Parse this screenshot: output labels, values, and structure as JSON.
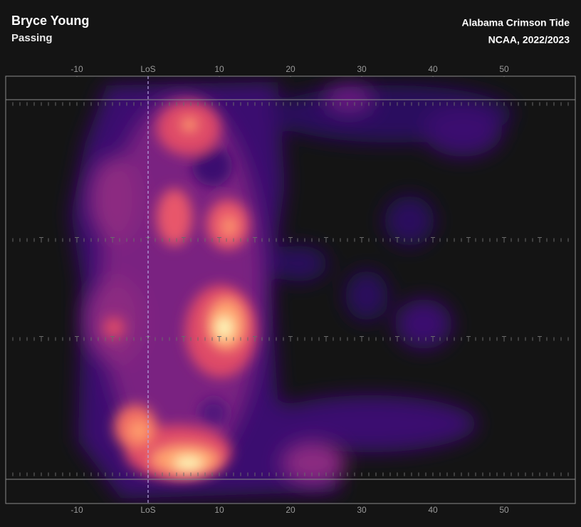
{
  "title": "Bryce Young",
  "subtitle": "Passing",
  "team": "Alabama Crimson Tide",
  "season": "NCAA, 2022/2023",
  "chart_data": {
    "type": "density",
    "xlim": [
      -20,
      60
    ],
    "xticks": [
      -10,
      {
        "value": 0,
        "label": "LoS"
      },
      10,
      20,
      30,
      40,
      50
    ]
  }
}
